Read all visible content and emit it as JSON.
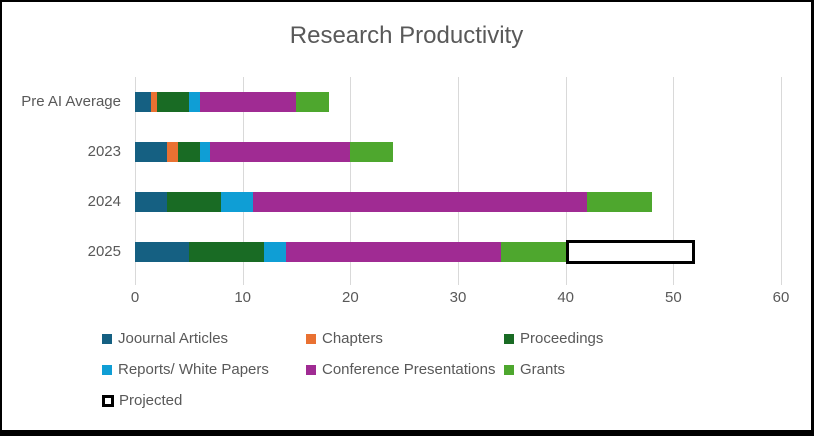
{
  "title": "Research Productivity",
  "chart_data": {
    "type": "bar",
    "orientation": "horizontal",
    "stacked": true,
    "title": "Research Productivity",
    "categories": [
      "Pre AI Average",
      "2023",
      "2024",
      "2025"
    ],
    "series": [
      {
        "name": "Joournal Articles",
        "color": "#156082",
        "values": [
          1.5,
          3,
          3,
          5
        ]
      },
      {
        "name": "Chapters",
        "color": "#E97132",
        "values": [
          0.5,
          1,
          0,
          0
        ]
      },
      {
        "name": "Proceedings",
        "color": "#196B24",
        "values": [
          3,
          2,
          5,
          7
        ]
      },
      {
        "name": "Reports/ White Papers",
        "color": "#0F9ED5",
        "values": [
          1,
          1,
          3,
          2
        ]
      },
      {
        "name": "Conference Presentations",
        "color": "#A02B93",
        "values": [
          9,
          13,
          31,
          20
        ]
      },
      {
        "name": "Grants",
        "color": "#4EA72E",
        "values": [
          3,
          4,
          6,
          6
        ]
      },
      {
        "name": "Projected",
        "color": "#FFFFFF",
        "outline": "#000000",
        "values": [
          0,
          0,
          0,
          12
        ]
      }
    ],
    "totals": [
      18,
      24,
      48,
      52
    ],
    "xlim": [
      0,
      60
    ],
    "xticks": [
      0,
      10,
      20,
      30,
      40,
      50,
      60
    ],
    "grid": true,
    "legend_position": "bottom",
    "legend_rows": [
      [
        0,
        1,
        2
      ],
      [
        3,
        4,
        5
      ],
      [
        6
      ]
    ]
  },
  "styles": {
    "text_color": "#595959",
    "gridline_color": "#D9D9D9",
    "frame_color": "#000000",
    "background": "#FFFFFF"
  }
}
